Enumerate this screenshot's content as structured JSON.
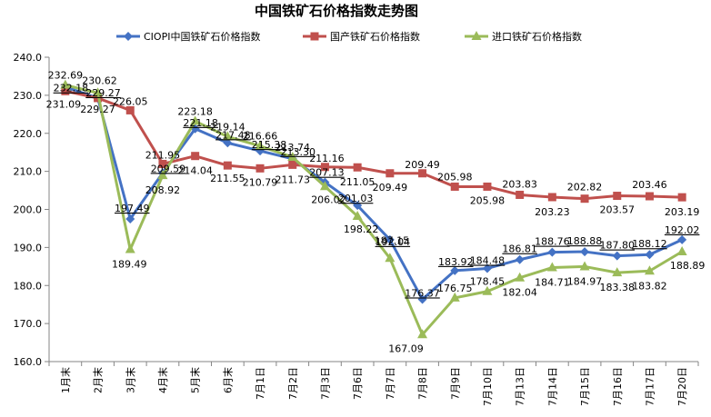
{
  "chart_data": {
    "type": "line",
    "title": "中国铁矿石价格指数走势图",
    "xlabel": "",
    "ylabel": "",
    "ylim": [
      160,
      240
    ],
    "ytick_step": 10,
    "grid": false,
    "legend_position": "top",
    "categories": [
      "1月末",
      "2月末",
      "3月末",
      "4月末",
      "5月末",
      "6月末",
      "7月1日",
      "7月2日",
      "7月3日",
      "7月6日",
      "7月7日",
      "7月8日",
      "7月9日",
      "7月10日",
      "7月13日",
      "7月14日",
      "7月15日",
      "7月16日",
      "7月17日",
      "7月20日"
    ],
    "series": [
      {
        "name": "CIOPI中国铁矿石价格指数",
        "color": "#4472c4",
        "marker": "diamond",
        "values": [
          232.18,
          229.27,
          197.49,
          209.59,
          221.18,
          217.48,
          215.38,
          213.3,
          207.13,
          201.03,
          192.04,
          176.37,
          183.92,
          184.48,
          186.81,
          188.76,
          188.88,
          187.8,
          188.12,
          192.02
        ],
        "labels": [
          "232.18",
          "229.27",
          "197.49",
          "209.59",
          "221.18",
          "217.48",
          "215.38",
          "213.30",
          "207.13",
          "201.03",
          "192.04",
          "176.37",
          "183.92",
          "184.48",
          "186.81",
          "188.76",
          "188.88",
          "187.80",
          "188.12",
          "192.02"
        ]
      },
      {
        "name": "国产铁矿石价格指数",
        "color": "#c0504d",
        "marker": "square",
        "values": [
          231.09,
          229.27,
          226.05,
          211.95,
          214.04,
          211.55,
          210.79,
          211.73,
          211.16,
          211.05,
          209.49,
          209.49,
          205.98,
          205.98,
          203.83,
          203.23,
          202.82,
          203.57,
          203.46,
          203.19
        ],
        "labels": [
          "231.09",
          "229.27",
          "226.05",
          "211.95",
          "214.04",
          "211.55",
          "210.79",
          "211.73",
          "211.16",
          "211.05",
          "209.49",
          "209.49",
          "205.98",
          "205.98",
          "203.83",
          "203.23",
          "202.82",
          "203.57",
          "203.46",
          "203.19"
        ]
      },
      {
        "name": "进口铁矿石价格指数",
        "color": "#9bbb59",
        "marker": "triangle",
        "values": [
          232.69,
          230.62,
          189.49,
          208.92,
          223.18,
          219.14,
          216.66,
          213.74,
          206.02,
          198.22,
          187.15,
          167.09,
          176.75,
          178.45,
          182.04,
          184.71,
          184.97,
          183.38,
          183.82,
          188.89
        ],
        "labels": [
          "232.69",
          "230.62",
          "189.49",
          "208.92",
          "223.18",
          "219.14",
          "216.66",
          "213.74",
          "206.02",
          "198.22",
          "187.15",
          "167.09",
          "176.75",
          "178.45",
          "182.04",
          "184.71",
          "184.97",
          "183.38",
          "183.82",
          "188.89"
        ]
      }
    ]
  }
}
